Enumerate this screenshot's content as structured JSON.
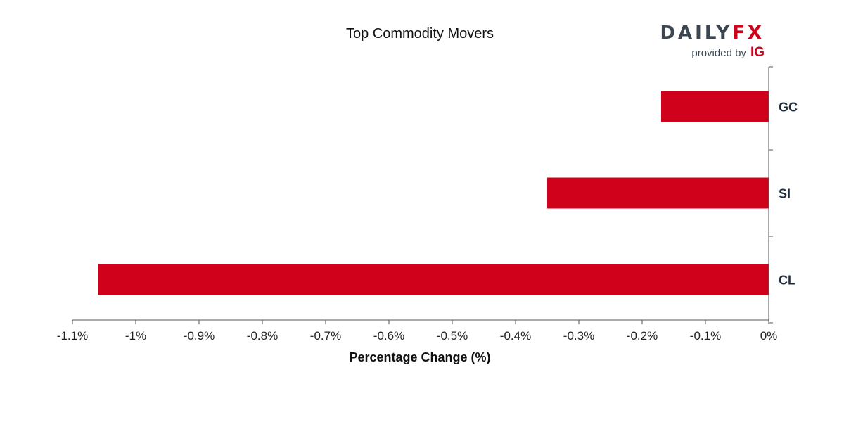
{
  "brand": {
    "name_dark": "DAILY",
    "name_accent": "FX",
    "provided_by": "provided by",
    "ig": "IG",
    "dark_color": "#3b4650",
    "accent_color": "#d0021b"
  },
  "chart_data": {
    "type": "bar",
    "orientation": "horizontal",
    "title": "Top Commodity Movers",
    "xlabel": "Percentage Change (%)",
    "ylabel": "",
    "categories": [
      "GC",
      "SI",
      "CL"
    ],
    "values": [
      -0.17,
      -0.35,
      -1.06
    ],
    "xlim": [
      -1.1,
      0
    ],
    "xticks": [
      -1.1,
      -1.0,
      -0.9,
      -0.8,
      -0.7,
      -0.6,
      -0.5,
      -0.4,
      -0.3,
      -0.2,
      -0.1,
      0
    ],
    "xtick_labels": [
      "-1.1%",
      "-1%",
      "-0.9%",
      "-0.8%",
      "-0.7%",
      "-0.6%",
      "-0.5%",
      "-0.4%",
      "-0.3%",
      "-0.2%",
      "-0.1%",
      "0%"
    ],
    "category_axis_position": "right",
    "grid": false,
    "legend": "none",
    "bar_color": "#d0021b",
    "axis_color": "#555555"
  }
}
